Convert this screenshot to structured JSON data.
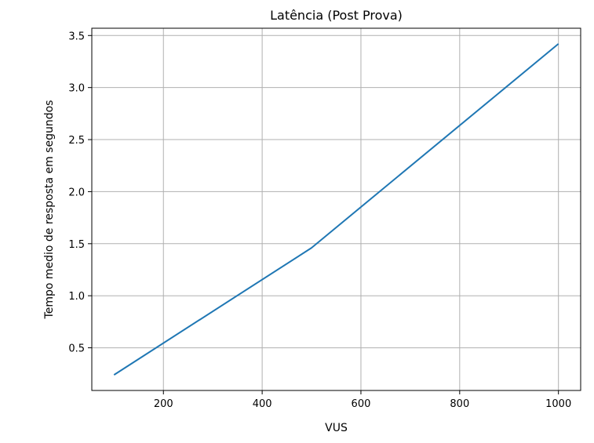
{
  "chart_data": {
    "type": "line",
    "title": "Latência (Post Prova)",
    "xlabel": "VUS",
    "ylabel": "Tempo medio de resposta em segundos",
    "xlim": [
      55,
      1045
    ],
    "ylim": [
      0.09,
      3.57
    ],
    "xticks": [
      200,
      400,
      600,
      800,
      1000
    ],
    "yticks": [
      0.5,
      1.0,
      1.5,
      2.0,
      2.5,
      3.0,
      3.5
    ],
    "xtick_labels": [
      "200",
      "400",
      "600",
      "800",
      "1000"
    ],
    "ytick_labels": [
      "0.5",
      "1.0",
      "1.5",
      "2.0",
      "2.5",
      "3.0",
      "3.5"
    ],
    "grid": true,
    "series": [
      {
        "color": "#1f77b4",
        "x": [
          100,
          500,
          1000
        ],
        "y": [
          0.24,
          1.46,
          3.42
        ]
      }
    ]
  }
}
